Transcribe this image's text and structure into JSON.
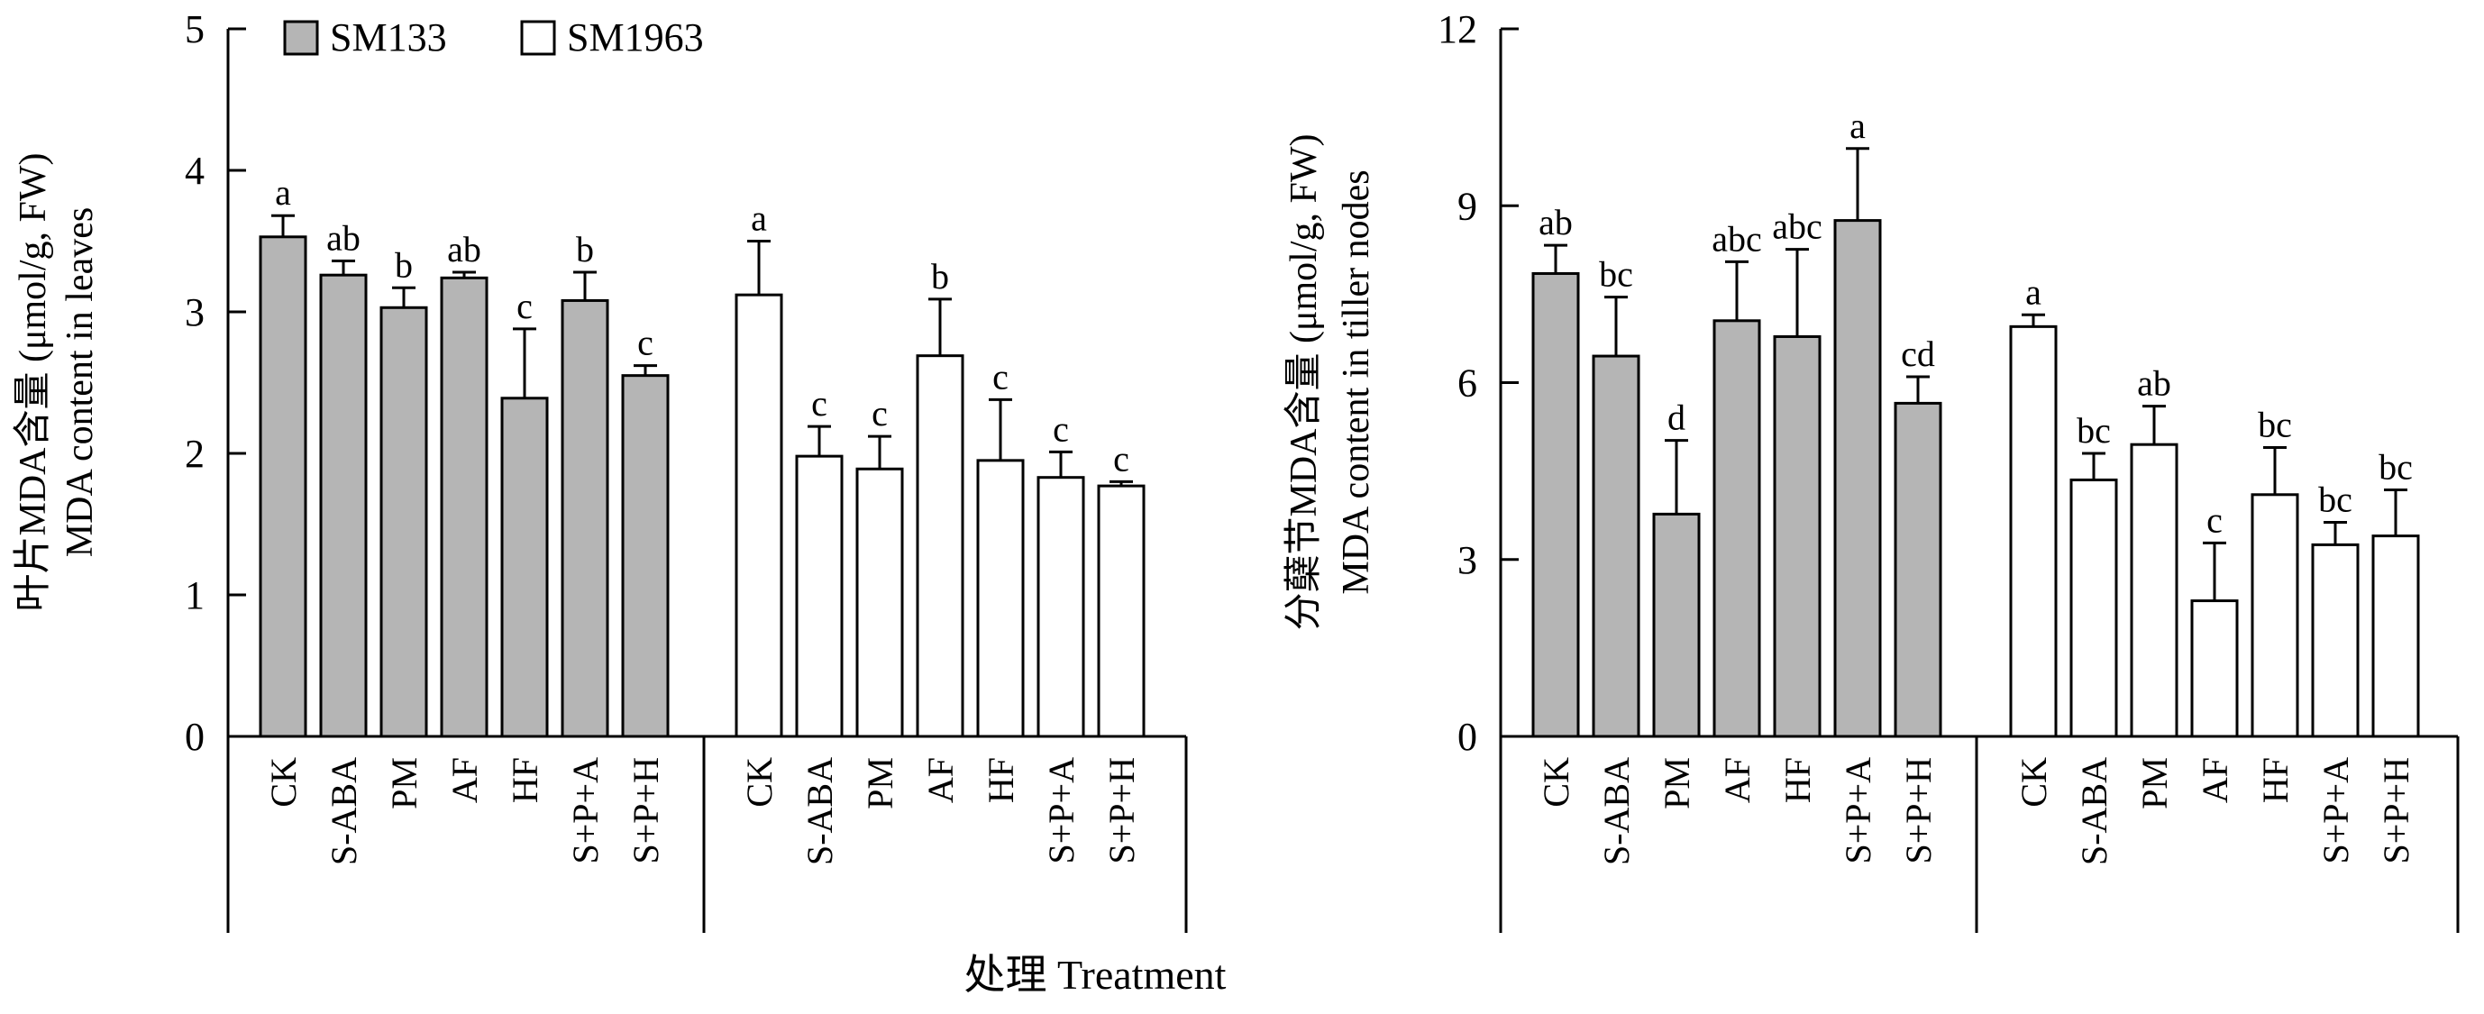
{
  "colors": {
    "SM133": "#b5b5b5",
    "SM1963": "#ffffff",
    "stroke": "#000000"
  },
  "legend": [
    {
      "name": "SM133",
      "color": "#b5b5b5"
    },
    {
      "name": "SM1963",
      "color": "#ffffff"
    }
  ],
  "x_title": "处理 Treatment",
  "chart_data": [
    {
      "type": "bar",
      "ylabel_cn": "叶片MDA含量 (μmol/g, FW)",
      "ylabel_en": "MDA content in leaves",
      "ylim": [
        0,
        5
      ],
      "yticks": [
        0,
        1,
        2,
        3,
        4,
        5
      ],
      "categories": [
        "CK",
        "S-ABA",
        "PM",
        "AF",
        "HF",
        "S+P+A",
        "S+P+H"
      ],
      "series": [
        {
          "name": "SM133",
          "values": [
            3.53,
            3.26,
            3.03,
            3.24,
            2.39,
            3.08,
            2.55
          ],
          "errors": [
            0.15,
            0.1,
            0.14,
            0.04,
            0.49,
            0.2,
            0.07
          ],
          "labels": [
            "a",
            "ab",
            "b",
            "ab",
            "c",
            "b",
            "c"
          ]
        },
        {
          "name": "SM1963",
          "values": [
            3.12,
            1.98,
            1.89,
            2.69,
            1.95,
            1.83,
            1.77
          ],
          "errors": [
            0.38,
            0.21,
            0.23,
            0.4,
            0.43,
            0.18,
            0.03
          ],
          "labels": [
            "a",
            "c",
            "c",
            "b",
            "c",
            "c",
            "c"
          ]
        }
      ]
    },
    {
      "type": "bar",
      "ylabel_cn": "分蘖节MDA含量 (μmol/g, FW)",
      "ylabel_en": "MDA content in tiller nodes",
      "ylim": [
        0,
        12
      ],
      "yticks": [
        0,
        3,
        6,
        9,
        12
      ],
      "categories": [
        "CK",
        "S-ABA",
        "PM",
        "AF",
        "HF",
        "S+P+A",
        "S+P+H"
      ],
      "series": [
        {
          "name": "SM133",
          "values": [
            7.85,
            6.45,
            3.77,
            7.05,
            6.78,
            8.75,
            5.65
          ],
          "errors": [
            0.48,
            1.0,
            1.25,
            1.0,
            1.48,
            1.22,
            0.45
          ],
          "labels": [
            "ab",
            "bc",
            "d",
            "abc",
            "abc",
            "a",
            "cd"
          ]
        },
        {
          "name": "SM1963",
          "values": [
            6.95,
            4.35,
            4.95,
            2.3,
            4.1,
            3.25,
            3.4
          ],
          "errors": [
            0.2,
            0.45,
            0.65,
            0.98,
            0.8,
            0.38,
            0.78
          ],
          "labels": [
            "a",
            "bc",
            "ab",
            "c",
            "bc",
            "bc",
            "bc"
          ]
        }
      ]
    }
  ]
}
